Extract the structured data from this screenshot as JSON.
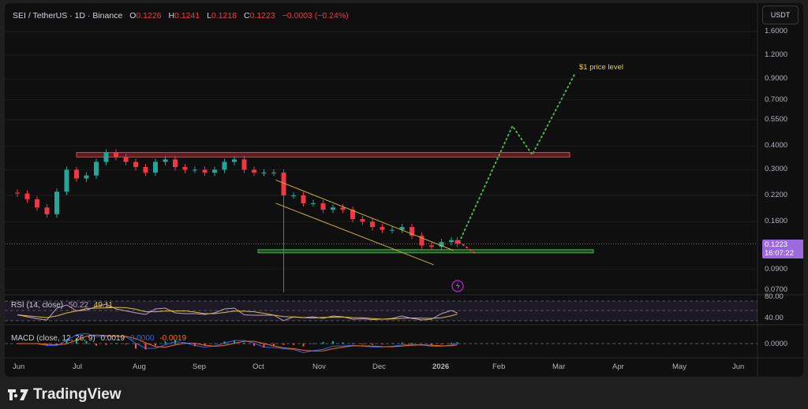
{
  "header": {
    "symbol": "SEI / TetherUS · 1D · Binance",
    "open_label": "O",
    "open": "0.1226",
    "high_label": "H",
    "high": "0.1241",
    "low_label": "L",
    "low": "0.1218",
    "close_label": "C",
    "close": "0.1223",
    "change": "−0.0003 (−0.24%)"
  },
  "currency_button": "USDT",
  "last_price": {
    "value": "0.1223",
    "countdown": "16:07:22",
    "color": "#9c6ade"
  },
  "rsi": {
    "label": "RSI (14, close)",
    "value": "50.22",
    "ma": "49.11",
    "ticks": [
      "80.00",
      "40.00"
    ]
  },
  "macd": {
    "label": "MACD (close, 12, 26, 9)",
    "hist": "0.0019",
    "macd": "0.0000",
    "signal": "-0.0019",
    "ticks": [
      "0.0000"
    ]
  },
  "annotation": "$1 price level",
  "footer": {
    "brand": "TradingView"
  },
  "colors": {
    "up": "#26a69a",
    "down": "#f23645",
    "resistance": "#f23645",
    "support": "#4caf50",
    "channel": "#c9b03a",
    "projection_up": "#4caf50",
    "projection_down": "#f23645",
    "rsi": "#c89ac8",
    "rsi_ma": "#d4c22a"
  },
  "chart_data": {
    "type": "candlestick",
    "scale": "log",
    "price_ticks": [
      "1.6000",
      "1.2000",
      "0.9000",
      "0.7000",
      "0.5500",
      "0.4000",
      "0.3000",
      "0.2200",
      "0.1600",
      "0.0900",
      "0.0700"
    ],
    "time_ticks": [
      "Jun",
      "Jul",
      "Aug",
      "Sep",
      "Oct",
      "Nov",
      "Dec",
      "2026",
      "Feb",
      "Mar",
      "Apr",
      "May",
      "Jun"
    ],
    "closes": [
      [
        "2025-06-01",
        0.225
      ],
      [
        "2025-06-06",
        0.21
      ],
      [
        "2025-06-11",
        0.19
      ],
      [
        "2025-06-16",
        0.175
      ],
      [
        "2025-06-21",
        0.23
      ],
      [
        "2025-06-26",
        0.3
      ],
      [
        "2025-07-01",
        0.27
      ],
      [
        "2025-07-06",
        0.28
      ],
      [
        "2025-07-11",
        0.33
      ],
      [
        "2025-07-16",
        0.37
      ],
      [
        "2025-07-21",
        0.35
      ],
      [
        "2025-07-26",
        0.33
      ],
      [
        "2025-07-31",
        0.31
      ],
      [
        "2025-08-05",
        0.29
      ],
      [
        "2025-08-10",
        0.33
      ],
      [
        "2025-08-15",
        0.34
      ],
      [
        "2025-08-20",
        0.31
      ],
      [
        "2025-08-25",
        0.3
      ],
      [
        "2025-08-30",
        0.3
      ],
      [
        "2025-09-04",
        0.29
      ],
      [
        "2025-09-09",
        0.3
      ],
      [
        "2025-09-14",
        0.33
      ],
      [
        "2025-09-19",
        0.34
      ],
      [
        "2025-09-24",
        0.3
      ],
      [
        "2025-09-29",
        0.29
      ],
      [
        "2025-10-04",
        0.29
      ],
      [
        "2025-10-09",
        0.29
      ],
      [
        "2025-10-14",
        0.22,
        0.068
      ],
      [
        "2025-10-19",
        0.22
      ],
      [
        "2025-10-24",
        0.2
      ],
      [
        "2025-10-29",
        0.2
      ],
      [
        "2025-11-03",
        0.185
      ],
      [
        "2025-11-08",
        0.19
      ],
      [
        "2025-11-13",
        0.185
      ],
      [
        "2025-11-18",
        0.165
      ],
      [
        "2025-11-23",
        0.16
      ],
      [
        "2025-11-28",
        0.15
      ],
      [
        "2025-12-03",
        0.145
      ],
      [
        "2025-12-08",
        0.145
      ],
      [
        "2025-12-13",
        0.15
      ],
      [
        "2025-12-18",
        0.135
      ],
      [
        "2025-12-23",
        0.12
      ],
      [
        "2025-12-28",
        0.118
      ],
      [
        "2026-01-02",
        0.125
      ],
      [
        "2026-01-07",
        0.128
      ],
      [
        "2026-01-10",
        0.1223
      ]
    ],
    "rsi_values": [
      45,
      40,
      35,
      32,
      62,
      70,
      55,
      57,
      66,
      72,
      60,
      55,
      50,
      46,
      60,
      62,
      50,
      48,
      48,
      46,
      50,
      60,
      62,
      45,
      44,
      44,
      44,
      30,
      40,
      38,
      40,
      36,
      42,
      40,
      34,
      35,
      33,
      34,
      36,
      42,
      36,
      32,
      34,
      48,
      56,
      50
    ],
    "resistance_zone": {
      "from": "2025-07-01",
      "to": "2026-03-08",
      "low": 0.35,
      "high": 0.37
    },
    "support_zone": {
      "from": "2025-10-01",
      "to": "2026-03-20",
      "low": 0.11,
      "high": 0.114
    },
    "channel": {
      "upper": [
        [
          "2025-10-10",
          0.265
        ],
        [
          "2026-01-08",
          0.113
        ]
      ],
      "lower": [
        [
          "2025-10-10",
          0.2
        ],
        [
          "2025-12-29",
          0.095
        ]
      ]
    },
    "projection_up": [
      [
        "2026-01-11",
        0.125
      ],
      [
        "2026-02-07",
        0.51
      ],
      [
        "2026-02-17",
        0.36
      ],
      [
        "2026-03-11",
        0.975
      ]
    ],
    "projection_down": [
      [
        "2026-01-11",
        0.125
      ],
      [
        "2026-01-19",
        0.109
      ]
    ]
  }
}
